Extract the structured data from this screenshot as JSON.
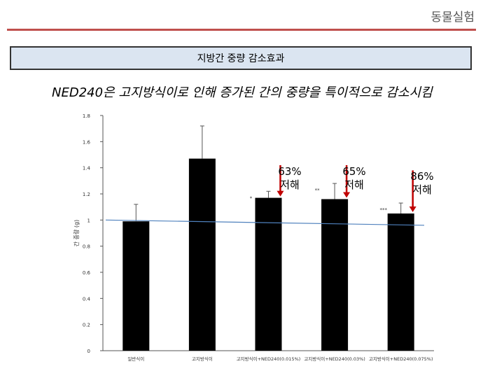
{
  "header": {
    "title": "동물실험"
  },
  "banner": {
    "text": "지방간 중량 감소효과"
  },
  "subtitle": "NED240은 고지방식이로 인해 증가된 간의 중량을 특이적으로 감소시킴",
  "colors": {
    "bars": "#000000",
    "trend_line": "#4f81bd",
    "arrow": "#c00000",
    "header_rule": "#c0504d",
    "banner_bg": "#dbe5f1"
  },
  "annotations": [
    {
      "pct": "63%",
      "label": "저해"
    },
    {
      "pct": "65%",
      "label": "저해"
    },
    {
      "pct": "86%",
      "label": "저해"
    }
  ],
  "chart_data": {
    "type": "bar",
    "categories": [
      "일반식이",
      "고지방식이",
      "고지방식이+NED240(0.015%)",
      "고지방식이+NED240(0.03%)",
      "고지방식이+NED240(0.075%)"
    ],
    "values": [
      0.99,
      1.47,
      1.17,
      1.16,
      1.05
    ],
    "errors": [
      0.13,
      0.25,
      0.05,
      0.12,
      0.08
    ],
    "significance": [
      "",
      "",
      "*",
      "**",
      "***"
    ],
    "ylabel": "간 중량 (g)",
    "ylim": [
      0,
      1.8
    ],
    "yticks": [
      0,
      0.2,
      0.4,
      0.6,
      0.8,
      1,
      1.2,
      1.4,
      1.6,
      1.8
    ],
    "trend_line": {
      "start": 1.0,
      "end": 0.96
    },
    "grid": false,
    "legend": "none"
  }
}
